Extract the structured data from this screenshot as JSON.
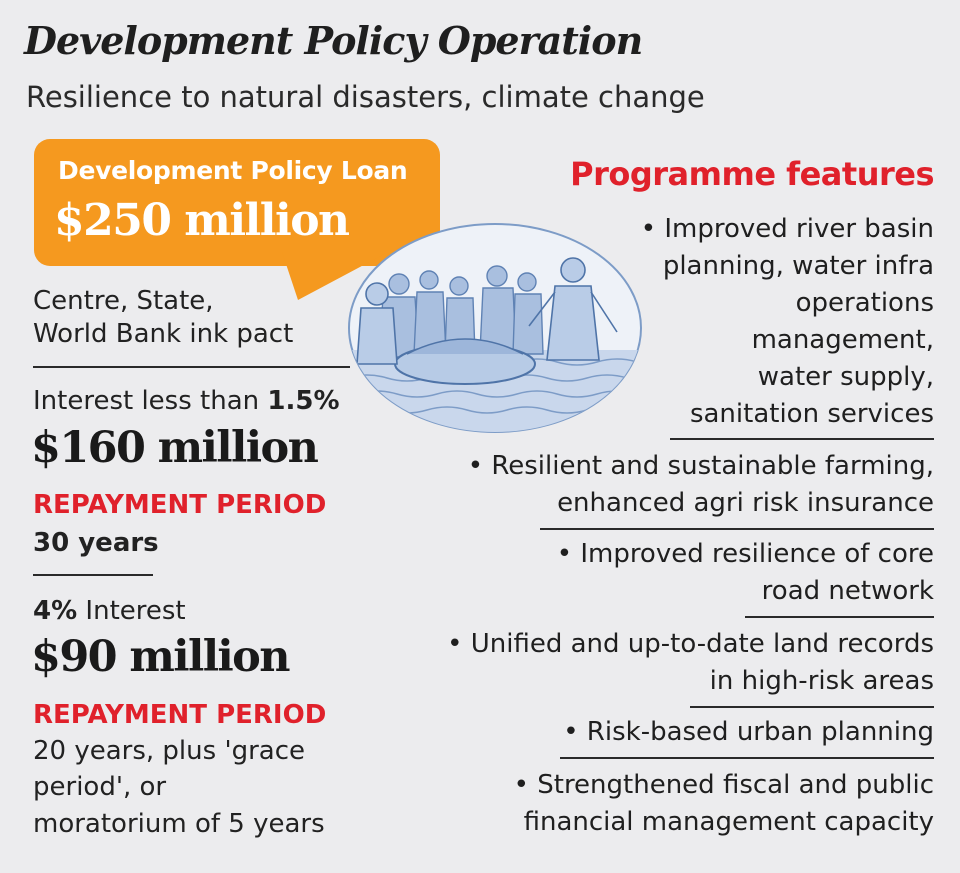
{
  "header": {
    "title": "Development Policy Operation",
    "subtitle": "Resilience to natural disasters, climate change"
  },
  "loan": {
    "label": "Development Policy Loan",
    "amount": "$250 million",
    "pact_line1": "Centre, State,",
    "pact_line2": "World Bank ink pact"
  },
  "tranche1": {
    "interest_prefix": "Interest less than ",
    "interest_rate": "1.5%",
    "amount": "$160 million",
    "repayment_label": "REPAYMENT PERIOD",
    "repayment_value": "30 years"
  },
  "tranche2": {
    "interest_rate": "4%",
    "interest_suffix": " Interest",
    "amount": "$90 million",
    "repayment_label": "REPAYMENT PERIOD",
    "repayment_line1": "20 years, plus 'grace",
    "repayment_line2": "period', or",
    "repayment_line3": "moratorium of 5 years"
  },
  "features": {
    "title": "Programme features",
    "items": [
      {
        "lines": [
          "• Improved river basin",
          "planning, water infra",
          "operations",
          "management,",
          "water supply,",
          "sanitation services"
        ]
      },
      {
        "lines": [
          "• Resilient and sustainable farming,",
          "enhanced agri risk insurance"
        ]
      },
      {
        "lines": [
          "• Improved resilience of core",
          "road network"
        ]
      },
      {
        "lines": [
          "• Unified and up-to-date land records",
          "in high-risk areas"
        ]
      },
      {
        "lines": [
          "• Risk-based urban planning"
        ]
      },
      {
        "lines": [
          "• Strengthened fiscal and public",
          "financial management capacity"
        ]
      }
    ]
  },
  "colors": {
    "background": "#ececee",
    "accent_orange": "#f5991f",
    "accent_red": "#e0212b",
    "illustration_blue": "#7d9cc7"
  }
}
